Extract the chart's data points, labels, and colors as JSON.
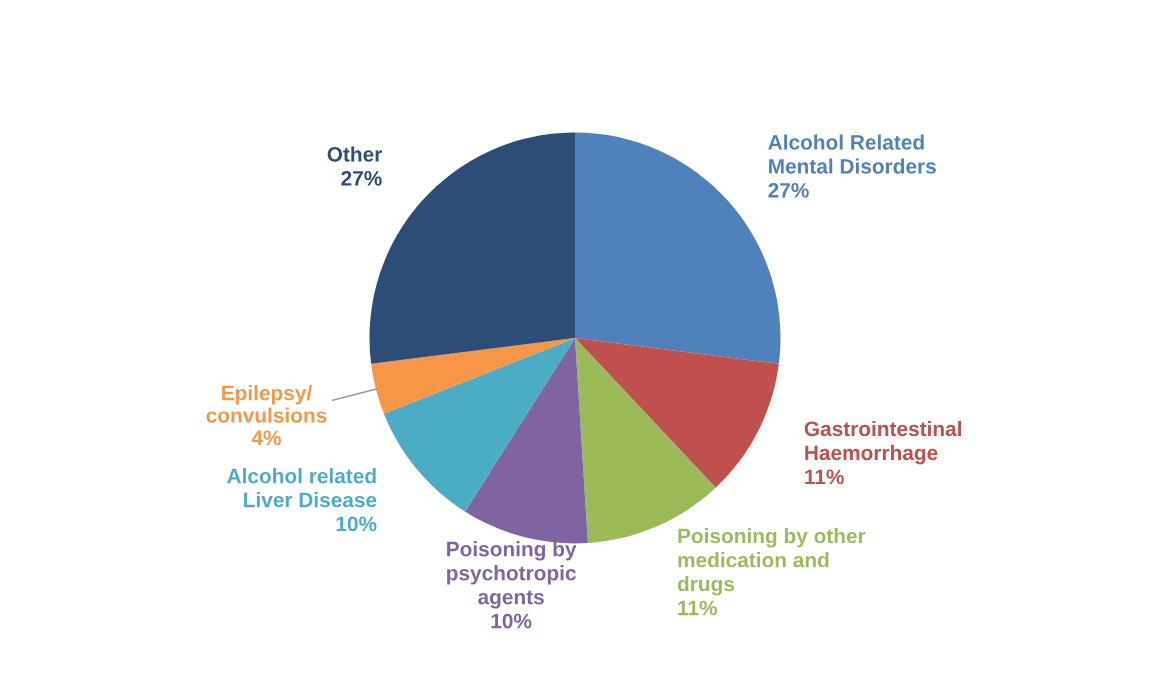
{
  "chart_data": {
    "type": "pie",
    "categories": [
      "Alcohol Related\nMental Disorders",
      "Gastrointestinal\nHaemorrhage",
      "Poisoning by other\nmedication and\ndrugs",
      "Poisoning by\npsychotropic\nagents",
      "Alcohol related\nLiver Disease",
      "Epilepsy/\nconvulsions",
      "Other"
    ],
    "values": [
      27,
      11,
      11,
      10,
      10,
      4,
      27
    ],
    "colors": [
      "#4f81bd",
      "#c0504d",
      "#9bbb59",
      "#8064a2",
      "#4bacc6",
      "#f79646",
      "#2c4d75"
    ],
    "value_labels": [
      "27%",
      "11%",
      "11%",
      "10%",
      "10%",
      "4%",
      "27%"
    ],
    "legend": false
  }
}
